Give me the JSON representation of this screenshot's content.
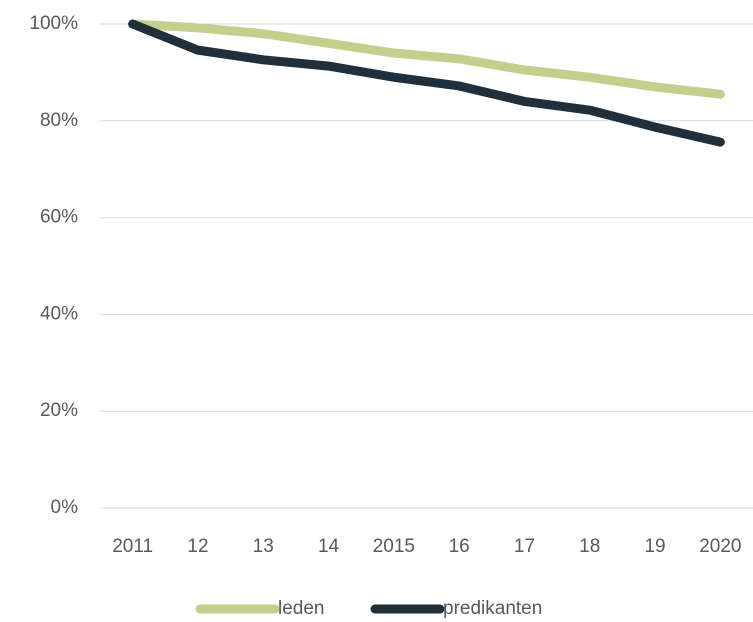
{
  "chart_data": {
    "type": "line",
    "categories": [
      "2011",
      "12",
      "13",
      "14",
      "2015",
      "16",
      "17",
      "18",
      "19",
      "2020"
    ],
    "series": [
      {
        "name": "leden",
        "color": "#c3cf8d",
        "values": [
          100,
          99.2,
          98,
          96,
          94,
          92.8,
          90.5,
          89,
          87,
          85.5
        ]
      },
      {
        "name": "predikanten",
        "color": "#1f2f3b",
        "values": [
          100,
          94.6,
          92.6,
          91.3,
          89,
          87.2,
          84,
          82.2,
          78.7,
          75.6
        ]
      }
    ],
    "ylim": [
      0,
      100
    ],
    "yticks": [
      {
        "value": 0,
        "label": "0%"
      },
      {
        "value": 20,
        "label": "20%"
      },
      {
        "value": 40,
        "label": "40%"
      },
      {
        "value": 60,
        "label": "60%"
      },
      {
        "value": 80,
        "label": "80%"
      },
      {
        "value": 100,
        "label": "100%"
      }
    ],
    "grid": true,
    "legend": "bottom"
  }
}
